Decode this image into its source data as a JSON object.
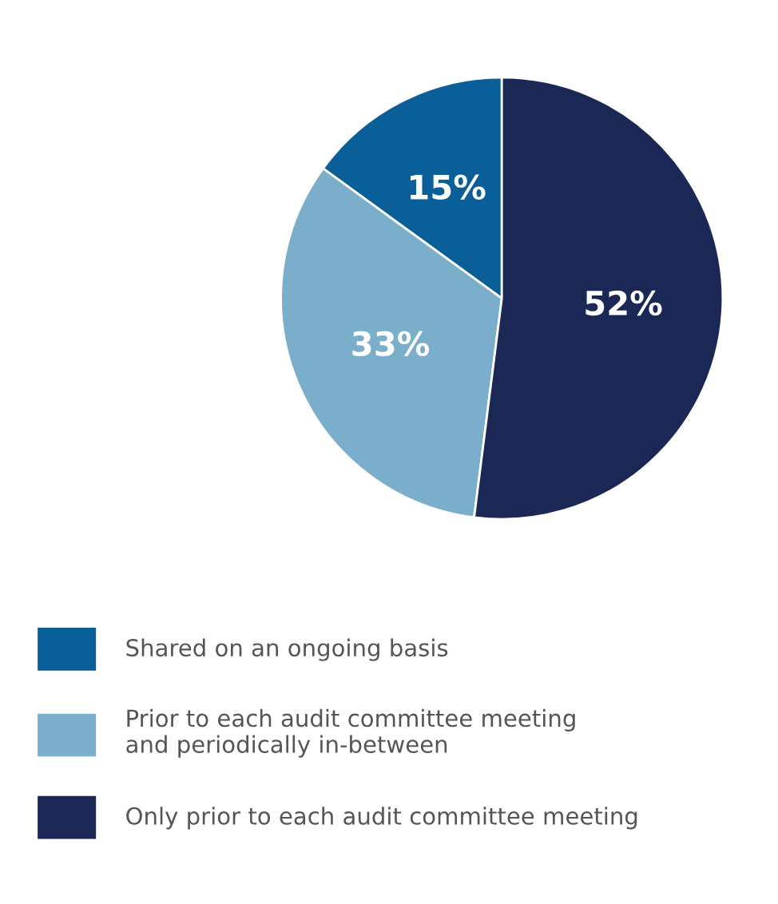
{
  "chart_data": {
    "type": "pie",
    "categories": [
      "Shared on an ongoing basis",
      "Prior to each audit committee meeting\nand periodically in-between",
      "Only prior to each audit committee meeting"
    ],
    "values": [
      15,
      33,
      52
    ],
    "colors": [
      "#0b5f98",
      "#7aaecb",
      "#1b2856"
    ],
    "value_labels": [
      "15%",
      "33%",
      "52%"
    ],
    "legend": "bottom"
  }
}
